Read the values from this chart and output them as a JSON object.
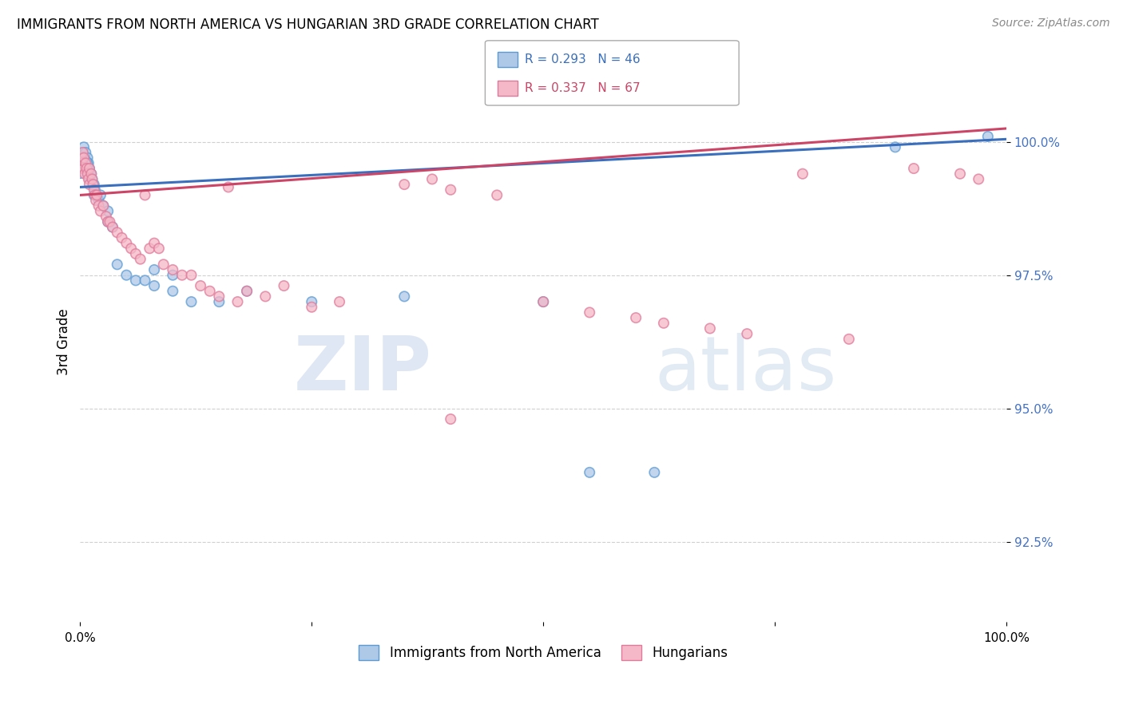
{
  "title": "IMMIGRANTS FROM NORTH AMERICA VS HUNGARIAN 3RD GRADE CORRELATION CHART",
  "source": "Source: ZipAtlas.com",
  "ylabel": "3rd Grade",
  "y_ticks": [
    92.5,
    95.0,
    97.5,
    100.0
  ],
  "y_tick_labels": [
    "92.5%",
    "95.0%",
    "97.5%",
    "100.0%"
  ],
  "xlim": [
    0.0,
    1.0
  ],
  "ylim": [
    91.0,
    101.5
  ],
  "blue_fill_color": "#aec8e8",
  "blue_edge_color": "#5b9bd5",
  "pink_fill_color": "#f4b8c8",
  "pink_edge_color": "#e07a9a",
  "blue_line_color": "#3a6fbd",
  "pink_line_color": "#cc4466",
  "legend_blue_label": "Immigrants from North America",
  "legend_pink_label": "Hungarians",
  "legend_blue_R": "R = 0.293",
  "legend_blue_N": "N = 46",
  "legend_pink_R": "R = 0.337",
  "legend_pink_N": "N = 67",
  "watermark_zip": "ZIP",
  "watermark_atlas": "atlas",
  "grid_color": "#d0d0d0",
  "background_color": "#ffffff",
  "blue_trend_x0": 0.0,
  "blue_trend_x1": 1.0,
  "blue_trend_y0": 99.15,
  "blue_trend_y1": 100.05,
  "pink_trend_x0": 0.0,
  "pink_trend_x1": 1.0,
  "pink_trend_y0": 99.0,
  "pink_trend_y1": 100.25,
  "blue_scatter_x": [
    0.0,
    0.002,
    0.003,
    0.004,
    0.005,
    0.005,
    0.006,
    0.007,
    0.008,
    0.008,
    0.009,
    0.01,
    0.01,
    0.01,
    0.012,
    0.013,
    0.015,
    0.015,
    0.016,
    0.018,
    0.02,
    0.022,
    0.025,
    0.03,
    0.03,
    0.035,
    0.04,
    0.05,
    0.06,
    0.07,
    0.08,
    0.1,
    0.12,
    0.15,
    0.08,
    0.1,
    0.18,
    0.25,
    0.35,
    0.5,
    0.55,
    0.62,
    0.88,
    0.98,
    0.0,
    0.002
  ],
  "blue_scatter_y": [
    99.6,
    99.8,
    99.7,
    99.9,
    99.5,
    99.7,
    99.8,
    99.6,
    99.5,
    99.7,
    99.6,
    99.4,
    99.5,
    99.3,
    99.4,
    99.3,
    99.2,
    99.0,
    99.1,
    99.0,
    98.9,
    99.0,
    98.8,
    98.7,
    98.5,
    98.4,
    97.7,
    97.5,
    97.4,
    97.4,
    97.3,
    97.2,
    97.0,
    97.0,
    97.6,
    97.5,
    97.2,
    97.0,
    97.1,
    97.0,
    93.8,
    93.8,
    99.9,
    100.1,
    99.55,
    99.65
  ],
  "blue_scatter_size": [
    80,
    80,
    80,
    80,
    80,
    80,
    80,
    80,
    80,
    80,
    80,
    80,
    80,
    80,
    80,
    80,
    80,
    80,
    80,
    80,
    80,
    80,
    80,
    80,
    80,
    80,
    80,
    80,
    80,
    80,
    80,
    80,
    80,
    80,
    80,
    80,
    80,
    80,
    80,
    80,
    80,
    80,
    80,
    80,
    500,
    80
  ],
  "pink_scatter_x": [
    0.0,
    0.001,
    0.002,
    0.003,
    0.004,
    0.004,
    0.005,
    0.006,
    0.007,
    0.008,
    0.009,
    0.01,
    0.01,
    0.012,
    0.013,
    0.014,
    0.015,
    0.016,
    0.017,
    0.018,
    0.02,
    0.022,
    0.025,
    0.028,
    0.03,
    0.032,
    0.035,
    0.04,
    0.045,
    0.05,
    0.055,
    0.06,
    0.065,
    0.07,
    0.075,
    0.08,
    0.085,
    0.09,
    0.1,
    0.11,
    0.12,
    0.13,
    0.14,
    0.15,
    0.16,
    0.17,
    0.18,
    0.2,
    0.22,
    0.25,
    0.28,
    0.35,
    0.38,
    0.4,
    0.45,
    0.5,
    0.55,
    0.6,
    0.63,
    0.68,
    0.72,
    0.78,
    0.83,
    0.9,
    0.95,
    0.97,
    0.4
  ],
  "pink_scatter_y": [
    99.5,
    99.7,
    99.6,
    99.8,
    99.5,
    99.7,
    99.4,
    99.6,
    99.5,
    99.4,
    99.3,
    99.5,
    99.2,
    99.4,
    99.3,
    99.2,
    99.1,
    99.0,
    98.9,
    99.0,
    98.8,
    98.7,
    98.8,
    98.6,
    98.5,
    98.5,
    98.4,
    98.3,
    98.2,
    98.1,
    98.0,
    97.9,
    97.8,
    99.0,
    98.0,
    98.1,
    98.0,
    97.7,
    97.6,
    97.5,
    97.5,
    97.3,
    97.2,
    97.1,
    99.15,
    97.0,
    97.2,
    97.1,
    97.3,
    96.9,
    97.0,
    99.2,
    99.3,
    99.1,
    99.0,
    97.0,
    96.8,
    96.7,
    96.6,
    96.5,
    96.4,
    99.4,
    96.3,
    99.5,
    99.4,
    99.3,
    94.8
  ],
  "pink_scatter_size": [
    80,
    80,
    80,
    80,
    80,
    80,
    80,
    80,
    80,
    80,
    80,
    80,
    80,
    80,
    80,
    80,
    80,
    80,
    80,
    80,
    80,
    80,
    80,
    80,
    80,
    80,
    80,
    80,
    80,
    80,
    80,
    80,
    80,
    80,
    80,
    80,
    80,
    80,
    80,
    80,
    80,
    80,
    80,
    80,
    80,
    80,
    80,
    80,
    80,
    80,
    80,
    80,
    80,
    80,
    80,
    80,
    80,
    80,
    80,
    80,
    80,
    80,
    80,
    80,
    80,
    80,
    80
  ]
}
